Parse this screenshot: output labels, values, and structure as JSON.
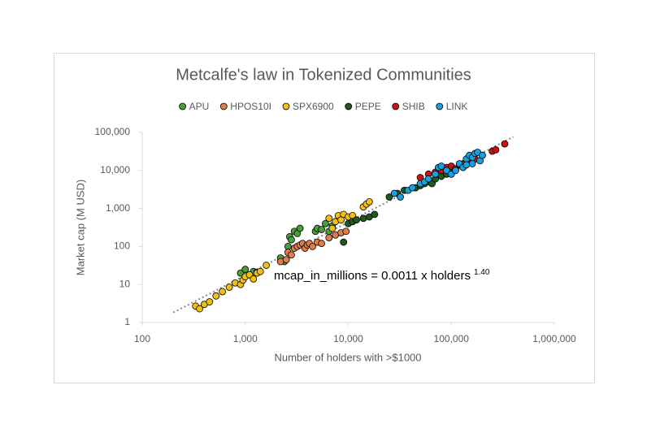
{
  "chart_data": {
    "type": "scatter",
    "title": "Metcalfe's law in Tokenized Communities",
    "x_label": "Number of holders with >$1000",
    "y_label": "Market cap (M USD)",
    "annotation": "mcap_in_millions = 0.0011 x holders",
    "annotation_exponent": "1.40",
    "x_log": true,
    "y_log": true,
    "xlim": [
      100,
      1000000
    ],
    "ylim": [
      1,
      100000
    ],
    "xticks": [
      100,
      {
        "value": 1000,
        "label": "1,000"
      },
      {
        "value": 10000,
        "label": "10,000"
      },
      {
        "value": 100000,
        "label": "100,000"
      },
      {
        "value": 1000000,
        "label": "1,000,000"
      }
    ],
    "yticks": [
      1,
      10,
      100,
      {
        "value": 1000,
        "label": "1,000"
      },
      {
        "value": 10000,
        "label": "10,000"
      },
      {
        "value": 100000,
        "label": "100,000"
      }
    ],
    "legend": "top",
    "trendline": {
      "coefficient": 0.0011,
      "exponent": 1.4,
      "xlim": [
        200,
        400000
      ],
      "color": "#888888"
    },
    "series": [
      {
        "name": "APU",
        "color": "#4a9e3a",
        "x": [
          900,
          1000,
          1100,
          1200,
          1300,
          2200,
          2400,
          2600,
          2700,
          2800,
          3000,
          3200,
          3400,
          4800,
          5000,
          5500,
          6000,
          6500,
          7000
        ],
        "values": [
          20,
          25,
          18,
          22,
          21,
          50,
          40,
          100,
          180,
          150,
          250,
          220,
          300,
          250,
          300,
          280,
          400,
          250,
          350
        ]
      },
      {
        "name": "HPOS10I",
        "color": "#e07b4a",
        "x": [
          2200,
          2500,
          2600,
          2800,
          3000,
          3200,
          3400,
          3600,
          3800,
          4000,
          4200,
          4500,
          5000,
          5500,
          6500,
          7500,
          8500,
          9500
        ],
        "values": [
          40,
          45,
          70,
          60,
          90,
          100,
          110,
          120,
          90,
          110,
          120,
          100,
          130,
          120,
          170,
          200,
          230,
          250
        ]
      },
      {
        "name": "SPX6900",
        "color": "#f2c012",
        "x": [
          330,
          360,
          400,
          450,
          520,
          600,
          700,
          800,
          900,
          950,
          1000,
          1100,
          1200,
          1300,
          1400,
          1600,
          6500,
          7000,
          7500,
          8000,
          8500,
          9000,
          10000,
          11000,
          14000,
          15000,
          16000
        ],
        "values": [
          2.7,
          2.3,
          3,
          3.5,
          5,
          6.5,
          8.5,
          11,
          10,
          13,
          16,
          18,
          14,
          20,
          22,
          32,
          550,
          300,
          450,
          650,
          500,
          700,
          600,
          650,
          1100,
          1300,
          1500
        ]
      },
      {
        "name": "PEPE",
        "color": "#1e5a1e",
        "x": [
          9000,
          10000,
          11000,
          12000,
          14000,
          16000,
          18000,
          25000,
          30000,
          35000,
          45000,
          50000,
          55000,
          60000,
          65000,
          70000,
          80000,
          90000,
          100000
        ],
        "values": [
          130,
          400,
          450,
          500,
          550,
          600,
          700,
          2000,
          2500,
          3000,
          3500,
          4000,
          4500,
          5000,
          4500,
          6000,
          7000,
          8000,
          9000
        ]
      },
      {
        "name": "SHIB",
        "color": "#d01010",
        "x": [
          50000,
          60000,
          70000,
          80000,
          90000,
          100000,
          110000,
          120000,
          130000,
          150000,
          170000,
          200000,
          250000,
          270000,
          330000
        ],
        "values": [
          6500,
          8000,
          9000,
          10000,
          12000,
          13000,
          11000,
          14000,
          15000,
          18000,
          20000,
          25000,
          32000,
          35000,
          50000
        ]
      },
      {
        "name": "LINK",
        "color": "#1aa0e0",
        "x": [
          28000,
          32000,
          38000,
          42000,
          50000,
          55000,
          60000,
          70000,
          75000,
          80000,
          90000,
          100000,
          110000,
          120000,
          130000,
          140000,
          150000,
          160000,
          170000,
          180000,
          190000,
          200000,
          160000,
          140000
        ],
        "values": [
          2500,
          2000,
          3000,
          3500,
          4500,
          5000,
          6000,
          8000,
          12000,
          13000,
          10000,
          8000,
          10000,
          15000,
          12000,
          20000,
          25000,
          22000,
          28000,
          30000,
          18000,
          25000,
          15000,
          14000
        ]
      }
    ]
  }
}
